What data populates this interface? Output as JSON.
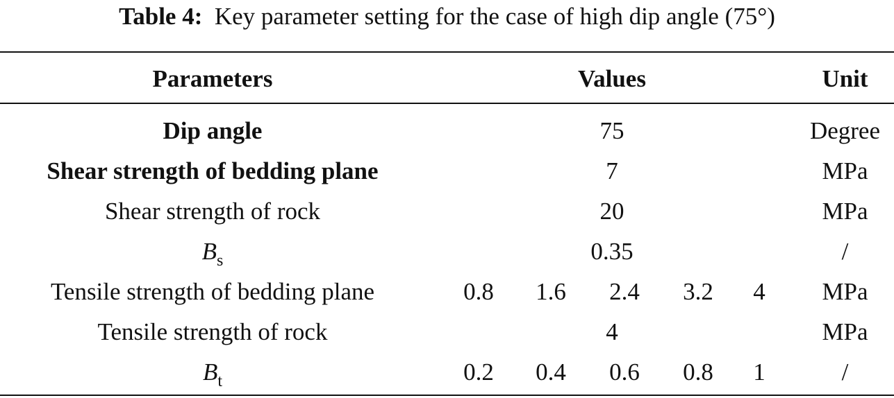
{
  "caption": {
    "label": "Table 4:",
    "text": "Key parameter setting for the case of high dip angle (75°)"
  },
  "header": {
    "parameters": "Parameters",
    "values": "Values",
    "unit": "Unit"
  },
  "rows": [
    {
      "param": "Dip angle",
      "value": "75",
      "unit": "Degree"
    },
    {
      "param": "Shear strength of bedding plane",
      "value": "7",
      "unit": "MPa"
    },
    {
      "param": "Shear strength of rock",
      "value": "20",
      "unit": "MPa"
    },
    {
      "param_symbol": "B",
      "param_sub": "s",
      "value": "0.35",
      "unit": "/"
    },
    {
      "param": "Tensile strength of bedding plane",
      "values": [
        "0.8",
        "1.6",
        "2.4",
        "3.2",
        "4"
      ],
      "unit": "MPa"
    },
    {
      "param": "Tensile strength of rock",
      "value": "4",
      "unit": "MPa"
    },
    {
      "param_symbol": "B",
      "param_sub": "t",
      "values": [
        "0.2",
        "0.4",
        "0.6",
        "0.8",
        "1"
      ],
      "unit": "/"
    }
  ]
}
